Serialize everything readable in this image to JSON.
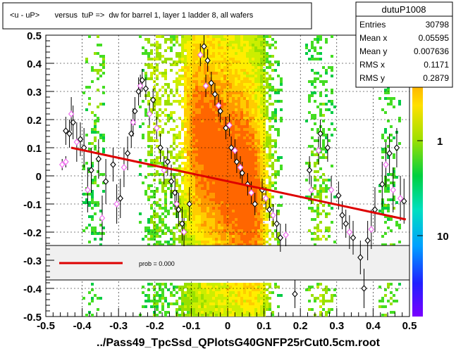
{
  "chart_data": {
    "type": "scatter",
    "title": "<u - uP>       versus  tuP =>  dw for barrel 1, layer 1 ladder 8, all wafers",
    "xlabel": "../Pass49_TpcSsd_QPlotsG40GNFP25rCut0.5cm.root",
    "ylabel": "",
    "xlim": [
      -0.5,
      0.5
    ],
    "ylim": [
      -0.5,
      0.5
    ],
    "x_ticks": [
      "-0.5",
      "-0.4",
      "-0.3",
      "-0.2",
      "-0.1",
      "0",
      "0.1",
      "0.2",
      "0.3",
      "0.4",
      "0.5"
    ],
    "y_ticks": [
      "-0.5",
      "-0.4",
      "-0.3",
      "-0.2",
      "-0.1",
      "0",
      "0.1",
      "0.2",
      "0.3",
      "0.4",
      "0.5"
    ],
    "colorbar_ticks": [
      "1",
      "10"
    ],
    "stats": {
      "name": "dutuP1008",
      "rows": [
        {
          "label": "Entries",
          "value": "30798"
        },
        {
          "label": "Mean x",
          "value": "0.05595"
        },
        {
          "label": "Mean y",
          "value": "0.007636"
        },
        {
          "label": "RMS x",
          "value": "0.1171"
        },
        {
          "label": "RMS y",
          "value": "0.2879"
        }
      ]
    },
    "legend": {
      "text": "prob = 0.000",
      "color": "#dd0000"
    },
    "fit_line": {
      "x": [
        -0.43,
        0.49
      ],
      "y": [
        0.1,
        -0.155
      ],
      "color": "#dd0000"
    },
    "series": [
      {
        "name": "black",
        "marker": "open-diamond",
        "color": "#000000",
        "points": [
          {
            "x": -0.445,
            "y": 0.16,
            "e": 0.05
          },
          {
            "x": -0.435,
            "y": 0.15,
            "e": 0.05
          },
          {
            "x": -0.425,
            "y": 0.19,
            "e": 0.06
          },
          {
            "x": -0.405,
            "y": 0.13,
            "e": 0.06
          },
          {
            "x": -0.395,
            "y": 0.1,
            "e": 0.07
          },
          {
            "x": -0.375,
            "y": 0.02,
            "e": 0.08
          },
          {
            "x": -0.355,
            "y": 0.06,
            "e": 0.07
          },
          {
            "x": -0.335,
            "y": -0.02,
            "e": 0.08
          },
          {
            "x": -0.315,
            "y": 0.04,
            "e": 0.06
          },
          {
            "x": -0.295,
            "y": -0.08,
            "e": 0.07
          },
          {
            "x": -0.275,
            "y": 0.08,
            "e": 0.06
          },
          {
            "x": -0.265,
            "y": 0.15,
            "e": 0.05
          },
          {
            "x": -0.255,
            "y": 0.23,
            "e": 0.05
          },
          {
            "x": -0.245,
            "y": 0.3,
            "e": 0.05
          },
          {
            "x": -0.235,
            "y": 0.34,
            "e": 0.04
          },
          {
            "x": -0.225,
            "y": 0.31,
            "e": 0.04
          },
          {
            "x": -0.205,
            "y": 0.27,
            "e": 0.04
          },
          {
            "x": -0.185,
            "y": 0.1,
            "e": 0.05
          },
          {
            "x": -0.165,
            "y": 0.05,
            "e": 0.05
          },
          {
            "x": -0.155,
            "y": -0.02,
            "e": 0.06
          },
          {
            "x": -0.145,
            "y": -0.06,
            "e": 0.06
          },
          {
            "x": -0.135,
            "y": -0.12,
            "e": 0.06
          },
          {
            "x": -0.125,
            "y": -0.17,
            "e": 0.06
          },
          {
            "x": -0.105,
            "y": -0.1,
            "e": 0.06
          },
          {
            "x": -0.065,
            "y": 0.46,
            "e": 0.04
          },
          {
            "x": -0.055,
            "y": 0.41,
            "e": 0.04
          },
          {
            "x": -0.045,
            "y": 0.33,
            "e": 0.04
          },
          {
            "x": -0.035,
            "y": 0.29,
            "e": 0.04
          },
          {
            "x": -0.02,
            "y": 0.23,
            "e": 0.04
          },
          {
            "x": -0.005,
            "y": 0.17,
            "e": 0.04
          },
          {
            "x": 0.01,
            "y": 0.1,
            "e": 0.04
          },
          {
            "x": 0.025,
            "y": 0.05,
            "e": 0.04
          },
          {
            "x": 0.04,
            "y": 0.01,
            "e": 0.04
          },
          {
            "x": 0.055,
            "y": -0.03,
            "e": 0.04
          },
          {
            "x": 0.075,
            "y": -0.1,
            "e": 0.04
          },
          {
            "x": 0.095,
            "y": -0.05,
            "e": 0.04
          },
          {
            "x": 0.115,
            "y": -0.12,
            "e": 0.04
          },
          {
            "x": 0.135,
            "y": -0.17,
            "e": 0.05
          },
          {
            "x": 0.145,
            "y": -0.22,
            "e": 0.05
          },
          {
            "x": 0.185,
            "y": -0.42,
            "e": 0.05
          },
          {
            "x": 0.225,
            "y": 0.02,
            "e": 0.05
          },
          {
            "x": 0.255,
            "y": 0.15,
            "e": 0.05
          },
          {
            "x": 0.275,
            "y": 0.1,
            "e": 0.05
          },
          {
            "x": 0.305,
            "y": -0.07,
            "e": 0.05
          },
          {
            "x": 0.315,
            "y": -0.14,
            "e": 0.05
          },
          {
            "x": 0.325,
            "y": -0.17,
            "e": 0.05
          },
          {
            "x": 0.345,
            "y": -0.22,
            "e": 0.06
          },
          {
            "x": 0.365,
            "y": -0.29,
            "e": 0.06
          },
          {
            "x": 0.375,
            "y": -0.4,
            "e": 0.07
          },
          {
            "x": 0.385,
            "y": -0.23,
            "e": 0.07
          },
          {
            "x": 0.405,
            "y": -0.12,
            "e": 0.08
          },
          {
            "x": 0.425,
            "y": -0.03,
            "e": 0.08
          },
          {
            "x": 0.445,
            "y": 0.08,
            "e": 0.07
          },
          {
            "x": 0.465,
            "y": 0.1,
            "e": 0.07
          },
          {
            "x": 0.485,
            "y": -0.09,
            "e": 0.08
          }
        ]
      },
      {
        "name": "violet",
        "marker": "open-diamond",
        "color": "#ee66ee",
        "points": [
          {
            "x": -0.455,
            "y": 0.04,
            "e": 0.02
          },
          {
            "x": -0.445,
            "y": 0.05,
            "e": 0.02
          },
          {
            "x": -0.43,
            "y": 0.22,
            "e": 0.06
          },
          {
            "x": -0.415,
            "y": 0.12,
            "e": 0.07
          },
          {
            "x": -0.385,
            "y": -0.05,
            "e": 0.08
          },
          {
            "x": -0.345,
            "y": -0.15,
            "e": 0.08
          },
          {
            "x": -0.305,
            "y": -0.1,
            "e": 0.07
          },
          {
            "x": -0.285,
            "y": 0.03,
            "e": 0.07
          },
          {
            "x": -0.26,
            "y": 0.19,
            "e": 0.05
          },
          {
            "x": -0.24,
            "y": 0.32,
            "e": 0.04
          },
          {
            "x": -0.215,
            "y": 0.22,
            "e": 0.04
          },
          {
            "x": -0.195,
            "y": 0.17,
            "e": 0.04
          },
          {
            "x": -0.175,
            "y": 0.02,
            "e": 0.05
          },
          {
            "x": -0.14,
            "y": -0.1,
            "e": 0.05
          },
          {
            "x": -0.12,
            "y": -0.2,
            "e": 0.05
          },
          {
            "x": -0.075,
            "y": 0.43,
            "e": 0.04
          },
          {
            "x": -0.06,
            "y": 0.32,
            "e": 0.04
          },
          {
            "x": -0.025,
            "y": 0.25,
            "e": 0.04
          },
          {
            "x": 0.005,
            "y": 0.18,
            "e": 0.04
          },
          {
            "x": 0.02,
            "y": 0.09,
            "e": 0.04
          },
          {
            "x": 0.035,
            "y": 0.03,
            "e": 0.04
          },
          {
            "x": 0.065,
            "y": -0.06,
            "e": 0.04
          },
          {
            "x": 0.105,
            "y": -0.08,
            "e": 0.04
          },
          {
            "x": 0.125,
            "y": -0.14,
            "e": 0.04
          },
          {
            "x": 0.16,
            "y": -0.21,
            "e": 0.04
          },
          {
            "x": 0.23,
            "y": -0.05,
            "e": 0.05
          },
          {
            "x": 0.25,
            "y": 0.09,
            "e": 0.05
          },
          {
            "x": 0.285,
            "y": -0.05,
            "e": 0.05
          },
          {
            "x": 0.335,
            "y": -0.2,
            "e": 0.06
          },
          {
            "x": 0.395,
            "y": -0.19,
            "e": 0.07
          },
          {
            "x": 0.435,
            "y": 0.04,
            "e": 0.08
          },
          {
            "x": 0.455,
            "y": -0.05,
            "e": 0.08
          },
          {
            "x": 0.475,
            "y": -0.08,
            "e": 0.08
          }
        ]
      }
    ]
  }
}
